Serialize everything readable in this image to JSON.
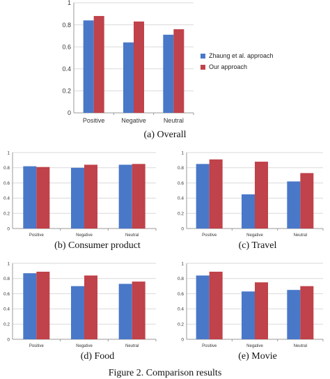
{
  "colors": {
    "series1": "#4a78c8",
    "series2": "#c0424a",
    "grid": "#d9d9d9",
    "axis": "#9a9a9a"
  },
  "figure": {
    "caption": "Figure 2. Comparison results"
  },
  "chart_data": [
    {
      "type": "bar",
      "caption": "(a) Overall",
      "categories": [
        "Positive",
        "Negative",
        "Neutral"
      ],
      "series": [
        {
          "name": "Zhaung et al. approach",
          "values": [
            0.84,
            0.64,
            0.71
          ]
        },
        {
          "name": "Our approach",
          "values": [
            0.88,
            0.83,
            0.76
          ]
        }
      ],
      "ylim": [
        0,
        1
      ],
      "yticks": [
        "0",
        "0.2",
        "0.4",
        "0.6",
        "0.8",
        "1"
      ],
      "grid": true,
      "legend": "right"
    },
    {
      "type": "bar",
      "caption": "(b) Consumer product",
      "categories": [
        "Positive",
        "Negative",
        "Neutral"
      ],
      "series": [
        {
          "values": [
            0.82,
            0.8,
            0.84
          ]
        },
        {
          "values": [
            0.81,
            0.84,
            0.85
          ]
        }
      ],
      "ylim": [
        0,
        1
      ],
      "yticks": [
        "0",
        "0.2",
        "0.4",
        "0.6",
        "0.8",
        "1"
      ],
      "grid": true
    },
    {
      "type": "bar",
      "caption": "(c) Travel",
      "categories": [
        "Positive",
        "Negative",
        "Neutral"
      ],
      "series": [
        {
          "values": [
            0.85,
            0.45,
            0.62
          ]
        },
        {
          "values": [
            0.91,
            0.88,
            0.73
          ]
        }
      ],
      "ylim": [
        0,
        1
      ],
      "yticks": [
        "0",
        "0.2",
        "0.4",
        "0.6",
        "0.8",
        "1"
      ],
      "grid": true
    },
    {
      "type": "bar",
      "caption": "(d) Food",
      "categories": [
        "Positive",
        "Negative",
        "Neutral"
      ],
      "series": [
        {
          "values": [
            0.87,
            0.7,
            0.73
          ]
        },
        {
          "values": [
            0.89,
            0.84,
            0.76
          ]
        }
      ],
      "ylim": [
        0,
        1
      ],
      "yticks": [
        "0",
        "0.2",
        "0.4",
        "0.6",
        "0.8",
        "1"
      ],
      "grid": true
    },
    {
      "type": "bar",
      "caption": "(e) Movie",
      "categories": [
        "Positive",
        "Negative",
        "Neutral"
      ],
      "series": [
        {
          "values": [
            0.84,
            0.63,
            0.65
          ]
        },
        {
          "values": [
            0.89,
            0.75,
            0.7
          ]
        }
      ],
      "ylim": [
        0,
        1
      ],
      "yticks": [
        "0",
        "0.2",
        "0.4",
        "0.6",
        "0.8",
        "1"
      ],
      "grid": true
    }
  ]
}
